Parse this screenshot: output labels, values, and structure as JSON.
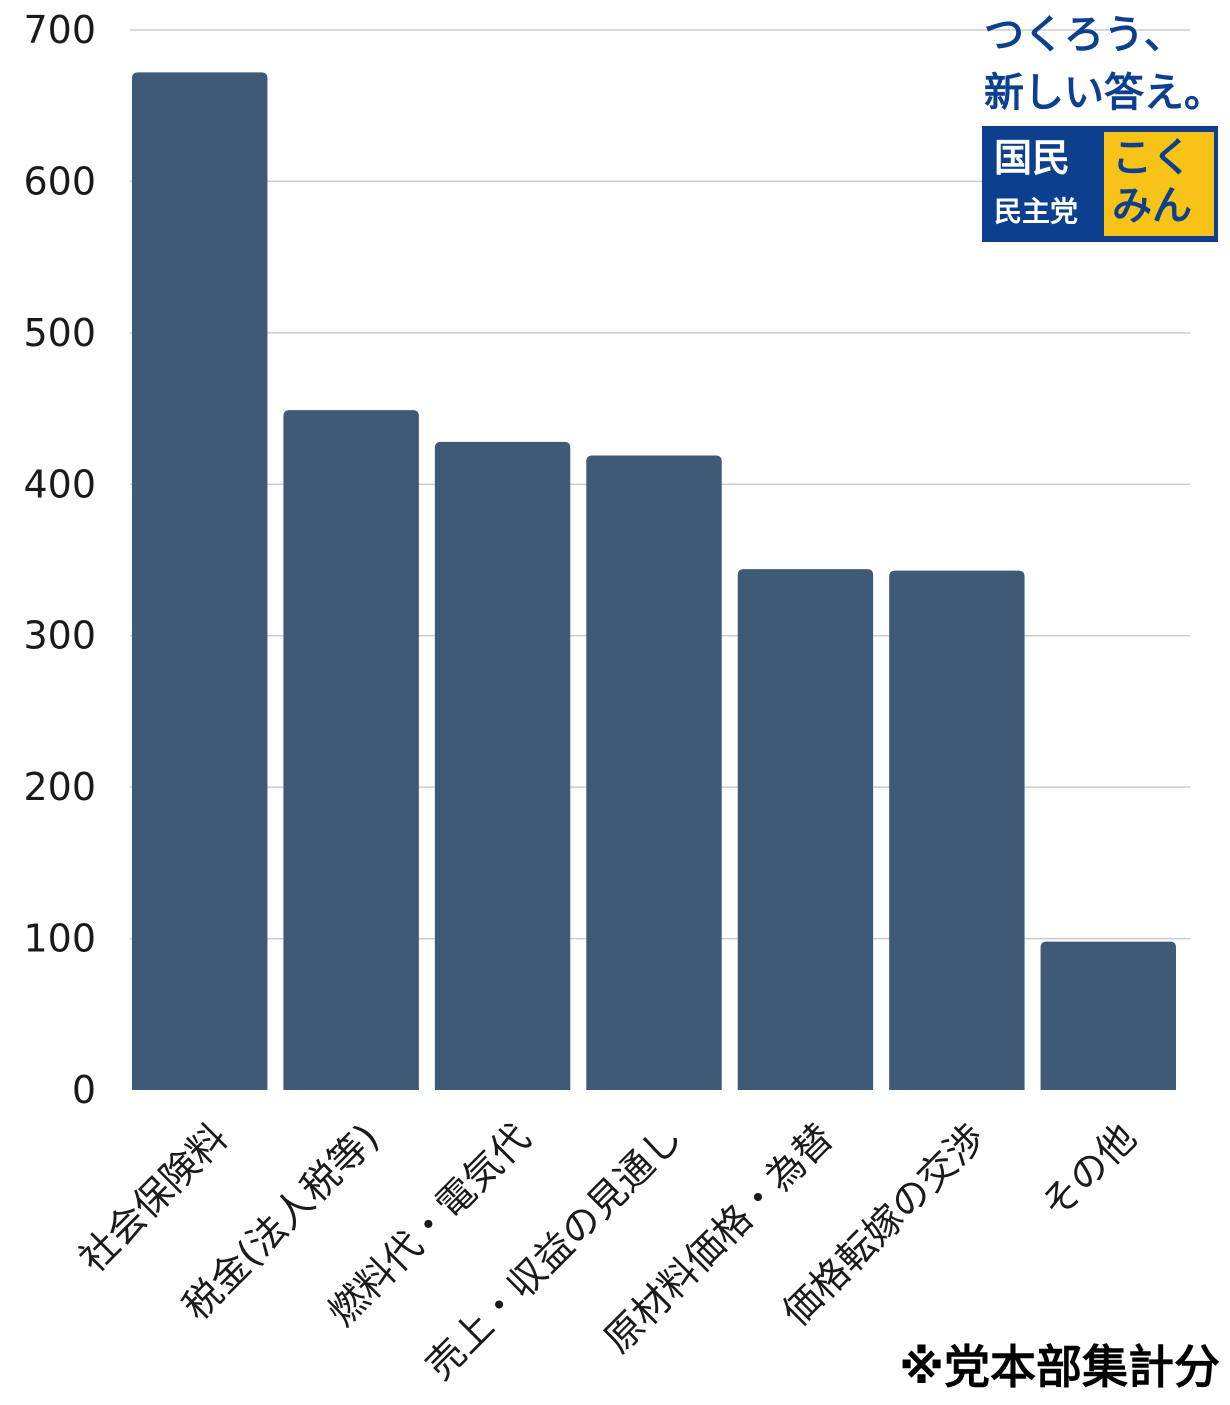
{
  "chart_data": {
    "type": "bar",
    "categories": [
      "社会保険料",
      "税金(法人税等)",
      "燃料代・電気代",
      "売上・収益の見通し",
      "原材料価格・為替",
      "価格転嫁の交渉",
      "その他"
    ],
    "values": [
      672,
      449,
      428,
      419,
      344,
      343,
      98
    ],
    "title": "",
    "xlabel": "",
    "ylabel": "",
    "ylim": [
      0,
      700
    ],
    "yticks": [
      0,
      100,
      200,
      300,
      400,
      500,
      600,
      700
    ],
    "grid": true,
    "legend": "none",
    "bar_color": "#3f5a76",
    "gridline_color": "#cccccc"
  },
  "logo": {
    "line1": "つくろう、",
    "line2": "新しい答え。",
    "kokumin": "国民",
    "party": "民主党",
    "kana1": "こく",
    "kana2": "みん",
    "primary_color": "#0d3f8f",
    "accent_color": "#f6c316"
  },
  "footnote": "※党本部集計分"
}
